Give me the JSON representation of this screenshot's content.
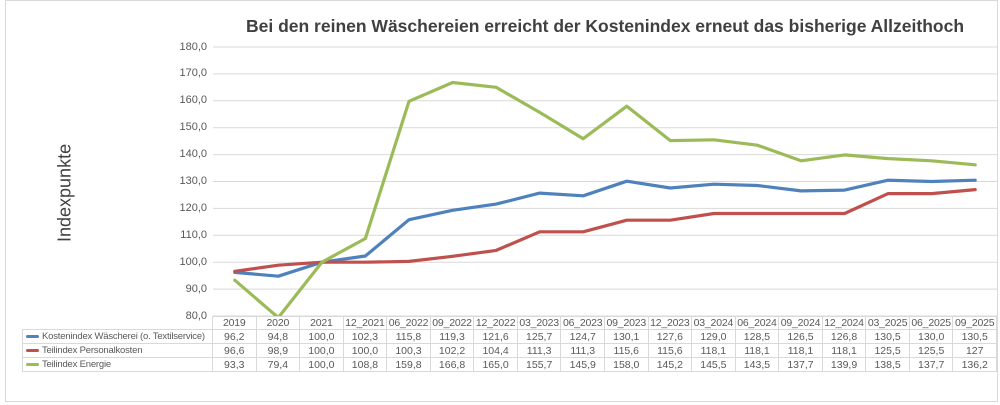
{
  "chart": {
    "title": "Bei den reinen Wäschereien erreicht der Kostenindex erneut das bisherige Allzeithoch",
    "ylabel": "Indexpunkte"
  },
  "chart_data": {
    "type": "line",
    "title": "Bei den reinen Wäschereien erreicht der Kostenindex erneut das bisherige Allzeithoch",
    "xlabel": "",
    "ylabel": "Indexpunkte",
    "ylim": [
      80,
      180
    ],
    "ytick_step": 10,
    "ytick_labels": [
      "180,0",
      "170,0",
      "160,0",
      "150,0",
      "140,0",
      "130,0",
      "120,0",
      "110,0",
      "100,0",
      "90,0",
      "80,0"
    ],
    "grid": true,
    "legend_position": "table-left",
    "categories": [
      "2019",
      "2020",
      "2021",
      "12_2021",
      "06_2022",
      "09_2022",
      "12_2022",
      "03_2023",
      "06_2023",
      "09_2023",
      "12_2023",
      "03_2024",
      "06_2024",
      "09_2024",
      "12_2024",
      "03_2025",
      "06_2025",
      "09_2025"
    ],
    "series": [
      {
        "name": "Kostenindex Wäscherei (o. Textilservice)",
        "color": "#4F81BD",
        "display": [
          "96,2",
          "94,8",
          "100,0",
          "102,3",
          "115,8",
          "119,3",
          "121,6",
          "125,7",
          "124,7",
          "130,1",
          "127,6",
          "129,0",
          "128,5",
          "126,5",
          "126,8",
          "130,5",
          "130,0",
          "130,5"
        ]
      },
      {
        "name": "Teilindex Personalkosten",
        "color": "#C0504D",
        "display": [
          "96,6",
          "98,9",
          "100,0",
          "100,0",
          "100,3",
          "102,2",
          "104,4",
          "111,3",
          "111,3",
          "115,6",
          "115,6",
          "118,1",
          "118,1",
          "118,1",
          "118,1",
          "125,5",
          "125,5",
          "127"
        ]
      },
      {
        "name": "Teilindex Energie",
        "color": "#9BBB59",
        "display": [
          "93,3",
          "79,4",
          "100,0",
          "108,8",
          "159,8",
          "166,8",
          "165,0",
          "155,7",
          "145,9",
          "158,0",
          "145,2",
          "145,5",
          "143,5",
          "137,7",
          "139,9",
          "138,5",
          "137,7",
          "136,2"
        ]
      }
    ],
    "colors": {
      "grid": "#D9D9D9",
      "title_text": "#404040",
      "axis_text": "#595959"
    }
  }
}
